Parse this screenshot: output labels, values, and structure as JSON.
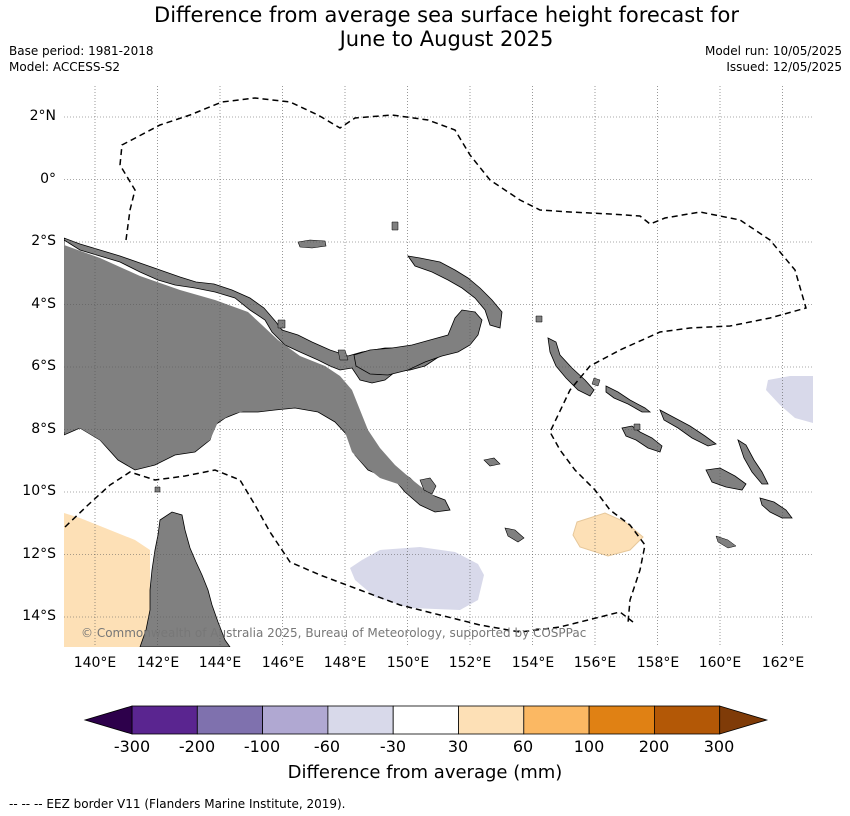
{
  "title": {
    "line1": "Difference from average sea surface height forecast for",
    "line2": "June to August 2025"
  },
  "meta": {
    "base_period": "Base period: 1981-2018",
    "model": "Model: ACCESS-S2",
    "model_run": "Model run: 10/05/2025",
    "issued": "Issued: 12/05/2025"
  },
  "map": {
    "lat_labels": [
      "2°N",
      "0°",
      "2°S",
      "4°S",
      "6°S",
      "8°S",
      "10°S",
      "12°S",
      "14°S"
    ],
    "lon_labels": [
      "140°E",
      "142°E",
      "144°E",
      "146°E",
      "148°E",
      "150°E",
      "152°E",
      "154°E",
      "156°E",
      "158°E",
      "160°E",
      "162°E"
    ],
    "copyright": "© Commonwealth of Australia 2025, Bureau of Meteorology, supported by COSPPac",
    "land_color": "#808080",
    "grid": true
  },
  "colorbar": {
    "ticks": [
      "-300",
      "-200",
      "-100",
      "-60",
      "-30",
      "30",
      "60",
      "100",
      "200",
      "300"
    ],
    "colors": [
      "#5a2590",
      "#7f71ae",
      "#b0a8d2",
      "#d8d9ea",
      "#ffffff",
      "#fde0b6",
      "#fbb863",
      "#e08114",
      "#b35806"
    ],
    "under_color": "#2d004b",
    "over_color": "#7f3b08",
    "label": "Difference from average (mm)"
  },
  "footnote": "--  --  -- EEZ border V11 (Flanders Marine Institute, 2019)."
}
